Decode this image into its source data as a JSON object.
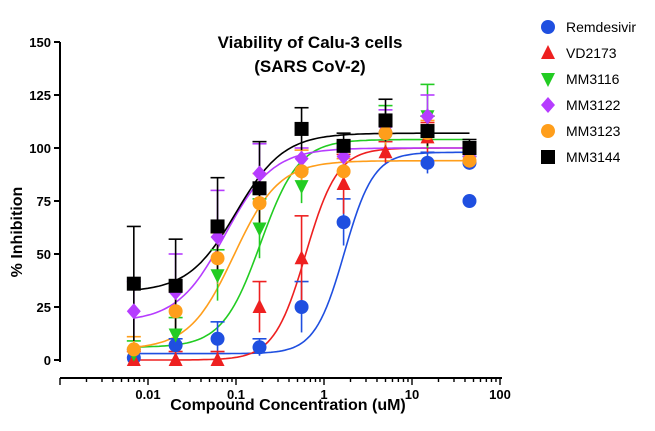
{
  "chart_data": {
    "type": "scatter",
    "title_lines": [
      "Viability of Calu-3 cells",
      "(SARS CoV-2)"
    ],
    "xlabel": "Compound Concentration (uM)",
    "ylabel": "% Inhibition",
    "x_scale": "log",
    "xlim": [
      0.001,
      100
    ],
    "ylim": [
      0,
      150
    ],
    "x_tick_labels": [
      "0.01",
      "0.1",
      "1",
      "10",
      "100"
    ],
    "x_tick_values": [
      0.01,
      0.1,
      1,
      10,
      100
    ],
    "y_tick_labels": [
      "0",
      "25",
      "50",
      "75",
      "100",
      "125",
      "150"
    ],
    "y_tick_values": [
      0,
      25,
      50,
      75,
      100,
      125,
      150
    ],
    "legend_position": "right",
    "x": [
      0.0069,
      0.0206,
      0.0617,
      0.185,
      0.556,
      1.67,
      5.0,
      15.0,
      45.0
    ],
    "series": [
      {
        "name": "Remdesivir",
        "marker": "circle",
        "color": "#1f4fe0",
        "values": [
          1,
          7,
          10,
          6,
          25,
          65,
          107,
          93,
          93
        ],
        "errors": [
          4,
          3,
          8,
          4,
          12,
          11,
          4,
          5,
          3
        ],
        "extra_points": [
          {
            "x": 45.0,
            "y": 75
          }
        ],
        "curve": {
          "bottom": 3,
          "top": 98,
          "ec50": 1.7,
          "hill": 2.6
        }
      },
      {
        "name": "VD2173",
        "marker": "triangle-up",
        "color": "#ee2020",
        "values": [
          0,
          0,
          0,
          25,
          48,
          83,
          98,
          105,
          96
        ],
        "errors": [
          4,
          4,
          4,
          12,
          20,
          14,
          5,
          7,
          4
        ],
        "curve": {
          "bottom": 0,
          "top": 100,
          "ec50": 0.62,
          "hill": 2.4
        }
      },
      {
        "name": "MM3116",
        "marker": "triangle-down",
        "color": "#22cc22",
        "values": [
          3,
          12,
          40,
          62,
          82,
          99,
          110,
          115,
          95
        ],
        "errors": [
          6,
          8,
          12,
          14,
          8,
          4,
          10,
          15,
          4
        ],
        "curve": {
          "bottom": 6,
          "top": 104,
          "ec50": 0.19,
          "hill": 2.0
        }
      },
      {
        "name": "MM3122",
        "marker": "diamond",
        "color": "#b63cff",
        "values": [
          23,
          32,
          58,
          88,
          95,
          96,
          110,
          115,
          96
        ],
        "errors": [
          14,
          18,
          22,
          14,
          5,
          4,
          8,
          10,
          4
        ],
        "curve": {
          "bottom": 18,
          "top": 100,
          "ec50": 0.075,
          "hill": 1.6
        }
      },
      {
        "name": "MM3123",
        "marker": "circle",
        "color": "#ff9e1b",
        "values": [
          5,
          23,
          48,
          74,
          89,
          89,
          107,
          107,
          94
        ],
        "errors": [
          6,
          10,
          12,
          14,
          10,
          6,
          6,
          6,
          4
        ],
        "curve": {
          "bottom": 5,
          "top": 94,
          "ec50": 0.095,
          "hill": 1.7
        }
      },
      {
        "name": "MM3144",
        "marker": "square",
        "color": "#000000",
        "values": [
          36,
          35,
          63,
          81,
          109,
          101,
          113,
          108,
          100
        ],
        "errors": [
          27,
          22,
          23,
          22,
          10,
          6,
          10,
          7,
          4
        ],
        "curve": {
          "bottom": 32,
          "top": 107,
          "ec50": 0.1,
          "hill": 1.6
        }
      }
    ]
  }
}
